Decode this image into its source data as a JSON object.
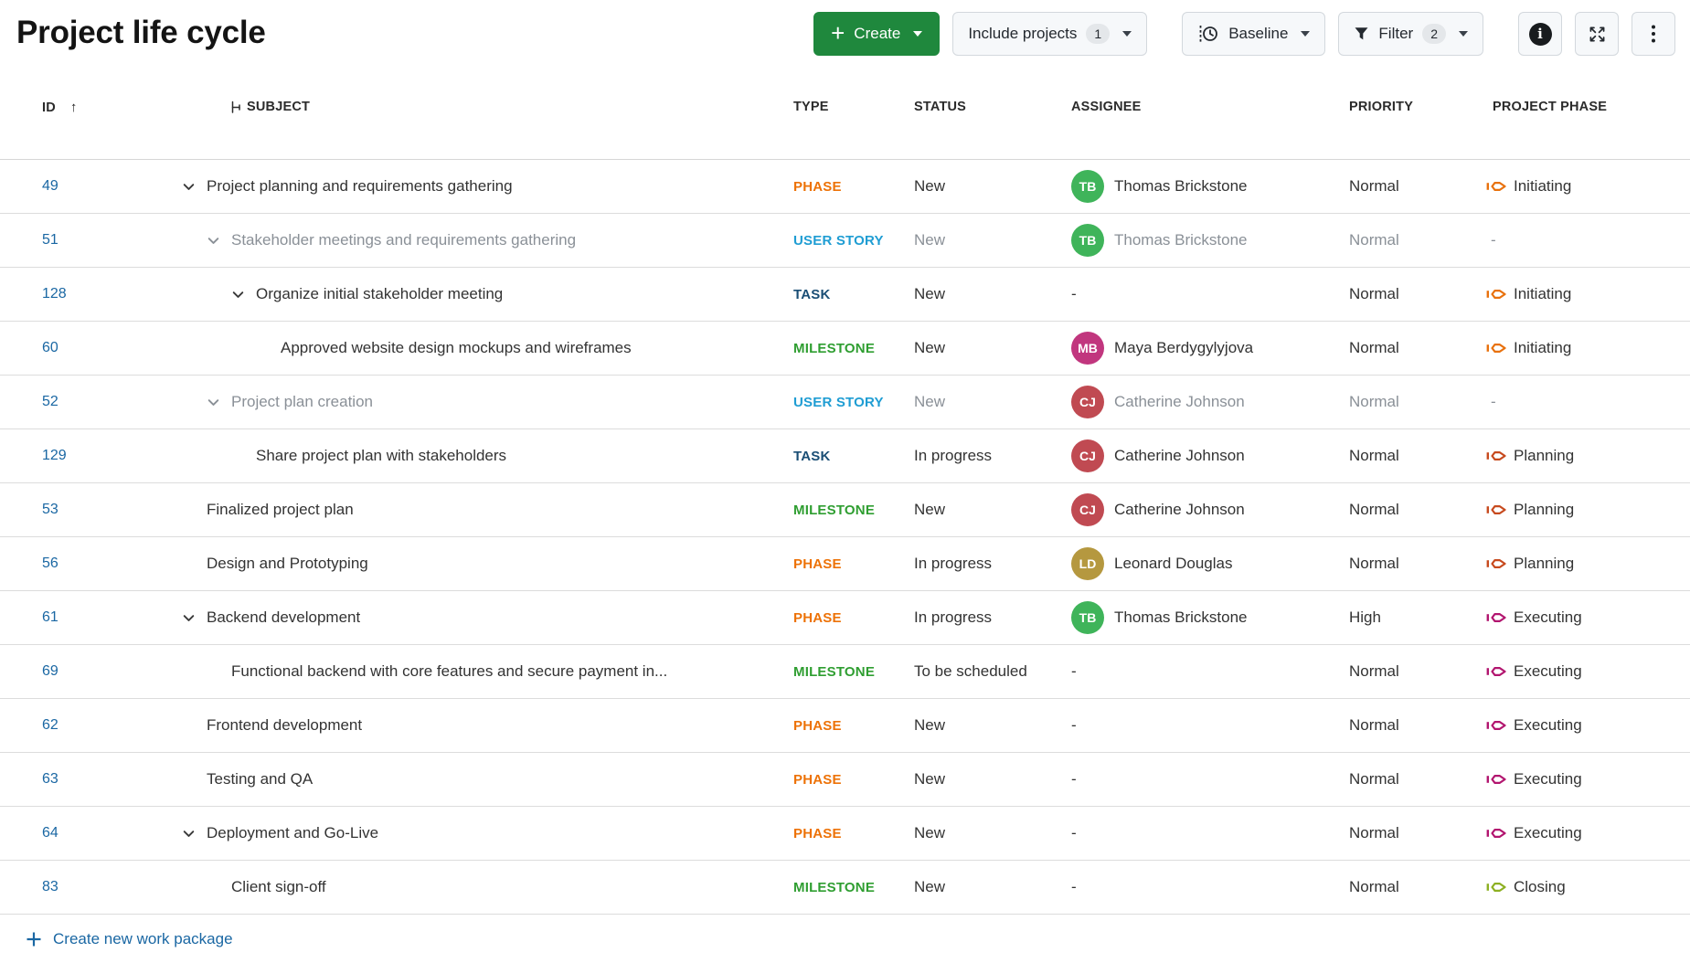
{
  "page": {
    "title": "Project life cycle"
  },
  "toolbar": {
    "create": "Create",
    "include_projects": "Include projects",
    "include_projects_count": "1",
    "baseline": "Baseline",
    "filter": "Filter",
    "filter_count": "2"
  },
  "table": {
    "empty_placeholder": "-",
    "columns": {
      "id": "ID",
      "subject": "SUBJECT",
      "type": "TYPE",
      "status": "STATUS",
      "assignee": "ASSIGNEE",
      "priority": "PRIORITY",
      "phase": "PROJECT PHASE"
    },
    "rows": [
      {
        "id": "49",
        "level": 0,
        "chevron": true,
        "dimmed": false,
        "subject": "Project planning and requirements gathering",
        "type": "PHASE",
        "type_color": "#ED7207",
        "status": "New",
        "assignee": {
          "initials": "TB",
          "name": "Thomas Brickstone",
          "color": "#3FB45A"
        },
        "priority": "Normal",
        "phase": {
          "label": "Initiating",
          "color": "#E8710D"
        }
      },
      {
        "id": "51",
        "level": 1,
        "chevron": true,
        "dimmed": true,
        "subject": "Stakeholder meetings and requirements gathering",
        "type": "USER STORY",
        "type_color": "#1F9DD3",
        "status": "New",
        "assignee": {
          "initials": "TB",
          "name": "Thomas Brickstone",
          "color": "#3FB45A"
        },
        "priority": "Normal",
        "phase": null
      },
      {
        "id": "128",
        "level": 2,
        "chevron": true,
        "dimmed": false,
        "subject": "Organize initial stakeholder meeting",
        "type": "TASK",
        "type_color": "#1A4E75",
        "status": "New",
        "assignee": null,
        "priority": "Normal",
        "phase": {
          "label": "Initiating",
          "color": "#E8710D"
        }
      },
      {
        "id": "60",
        "level": 3,
        "chevron": false,
        "dimmed": false,
        "subject": "Approved website design mockups and wireframes",
        "type": "MILESTONE",
        "type_color": "#2F9E31",
        "status": "New",
        "assignee": {
          "initials": "MB",
          "name": "Maya Berdygylyjova",
          "color": "#C1367E"
        },
        "priority": "Normal",
        "phase": {
          "label": "Initiating",
          "color": "#E8710D"
        }
      },
      {
        "id": "52",
        "level": 1,
        "chevron": true,
        "dimmed": true,
        "subject": "Project plan creation",
        "type": "USER STORY",
        "type_color": "#1F9DD3",
        "status": "New",
        "assignee": {
          "initials": "CJ",
          "name": "Catherine Johnson",
          "color": "#C04A52"
        },
        "priority": "Normal",
        "phase": null
      },
      {
        "id": "129",
        "level": 2,
        "chevron": false,
        "dimmed": false,
        "subject": "Share project plan with stakeholders",
        "type": "TASK",
        "type_color": "#1A4E75",
        "status": "In progress",
        "assignee": {
          "initials": "CJ",
          "name": "Catherine Johnson",
          "color": "#C04A52"
        },
        "priority": "Normal",
        "phase": {
          "label": "Planning",
          "color": "#C74A1E"
        }
      },
      {
        "id": "53",
        "level": 0,
        "chevron": false,
        "dimmed": false,
        "subject": "Finalized project plan",
        "type": "MILESTONE",
        "type_color": "#2F9E31",
        "status": "New",
        "assignee": {
          "initials": "CJ",
          "name": "Catherine Johnson",
          "color": "#C04A52"
        },
        "priority": "Normal",
        "phase": {
          "label": "Planning",
          "color": "#C74A1E"
        }
      },
      {
        "id": "56",
        "level": 0,
        "chevron": false,
        "dimmed": false,
        "subject": "Design and Prototyping",
        "type": "PHASE",
        "type_color": "#ED7207",
        "status": "In progress",
        "assignee": {
          "initials": "LD",
          "name": "Leonard Douglas",
          "color": "#B5983F"
        },
        "priority": "Normal",
        "phase": {
          "label": "Planning",
          "color": "#C74A1E"
        }
      },
      {
        "id": "61",
        "level": 0,
        "chevron": true,
        "dimmed": false,
        "subject": "Backend development",
        "type": "PHASE",
        "type_color": "#ED7207",
        "status": "In progress",
        "assignee": {
          "initials": "TB",
          "name": "Thomas Brickstone",
          "color": "#3FB45A"
        },
        "priority": "High",
        "phase": {
          "label": "Executing",
          "color": "#B2156F"
        }
      },
      {
        "id": "69",
        "level": 1,
        "chevron": false,
        "dimmed": false,
        "subject": "Functional backend with core features and secure payment in...",
        "type": "MILESTONE",
        "type_color": "#2F9E31",
        "status": "To be scheduled",
        "assignee": null,
        "priority": "Normal",
        "phase": {
          "label": "Executing",
          "color": "#B2156F"
        }
      },
      {
        "id": "62",
        "level": 0,
        "chevron": false,
        "dimmed": false,
        "subject": "Frontend development",
        "type": "PHASE",
        "type_color": "#ED7207",
        "status": "New",
        "assignee": null,
        "priority": "Normal",
        "phase": {
          "label": "Executing",
          "color": "#B2156F"
        }
      },
      {
        "id": "63",
        "level": 0,
        "chevron": false,
        "dimmed": false,
        "subject": "Testing and QA",
        "type": "PHASE",
        "type_color": "#ED7207",
        "status": "New",
        "assignee": null,
        "priority": "Normal",
        "phase": {
          "label": "Executing",
          "color": "#B2156F"
        }
      },
      {
        "id": "64",
        "level": 0,
        "chevron": true,
        "dimmed": false,
        "subject": "Deployment and Go-Live",
        "type": "PHASE",
        "type_color": "#ED7207",
        "status": "New",
        "assignee": null,
        "priority": "Normal",
        "phase": {
          "label": "Executing",
          "color": "#B2156F"
        }
      },
      {
        "id": "83",
        "level": 1,
        "chevron": false,
        "dimmed": false,
        "subject": "Client sign-off",
        "type": "MILESTONE",
        "type_color": "#2F9E31",
        "status": "New",
        "assignee": null,
        "priority": "Normal",
        "phase": {
          "label": "Closing",
          "color": "#8DB022"
        }
      }
    ]
  },
  "footer": {
    "create_link": "Create new work package"
  },
  "colors": {
    "link": "#1A67A3",
    "create_button": "#1F883D",
    "dimmed_text": "#8A9097",
    "row_text": "#333333"
  }
}
